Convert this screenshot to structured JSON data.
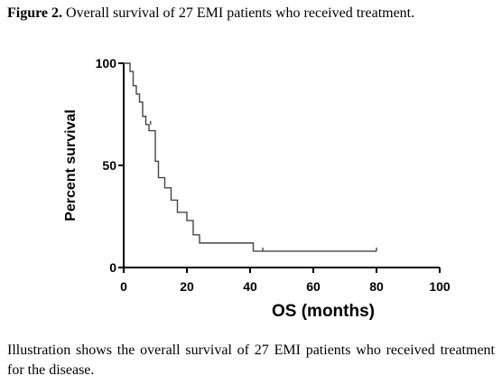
{
  "figure": {
    "label": "Figure 2.",
    "title": "Overall survival of 27 EMI patients who received treatment.",
    "caption": "Illustration shows the overall survival of 27 EMI patients who received treatment for the disease."
  },
  "chart_data": {
    "type": "line",
    "step": true,
    "xlabel": "OS (months)",
    "ylabel": "Percent survival",
    "xlim": [
      0,
      100
    ],
    "ylim": [
      0,
      100
    ],
    "xticks": [
      "0",
      "20",
      "40",
      "60",
      "80",
      "100"
    ],
    "yticks": [
      "0",
      "50",
      "100"
    ],
    "grid": false,
    "series": [
      {
        "x": [
          0,
          2,
          3,
          4,
          5,
          6,
          7,
          8,
          10,
          11,
          13,
          15,
          17,
          20,
          22,
          24,
          41,
          80
        ],
        "y": [
          100,
          96,
          89,
          85,
          81,
          74,
          70,
          67,
          52,
          44,
          39,
          33,
          27,
          23,
          16,
          12,
          8,
          8
        ]
      }
    ],
    "censored": [
      {
        "x": 8.5,
        "y": 70
      },
      {
        "x": 44,
        "y": 8
      },
      {
        "x": 80,
        "y": 8
      }
    ]
  }
}
